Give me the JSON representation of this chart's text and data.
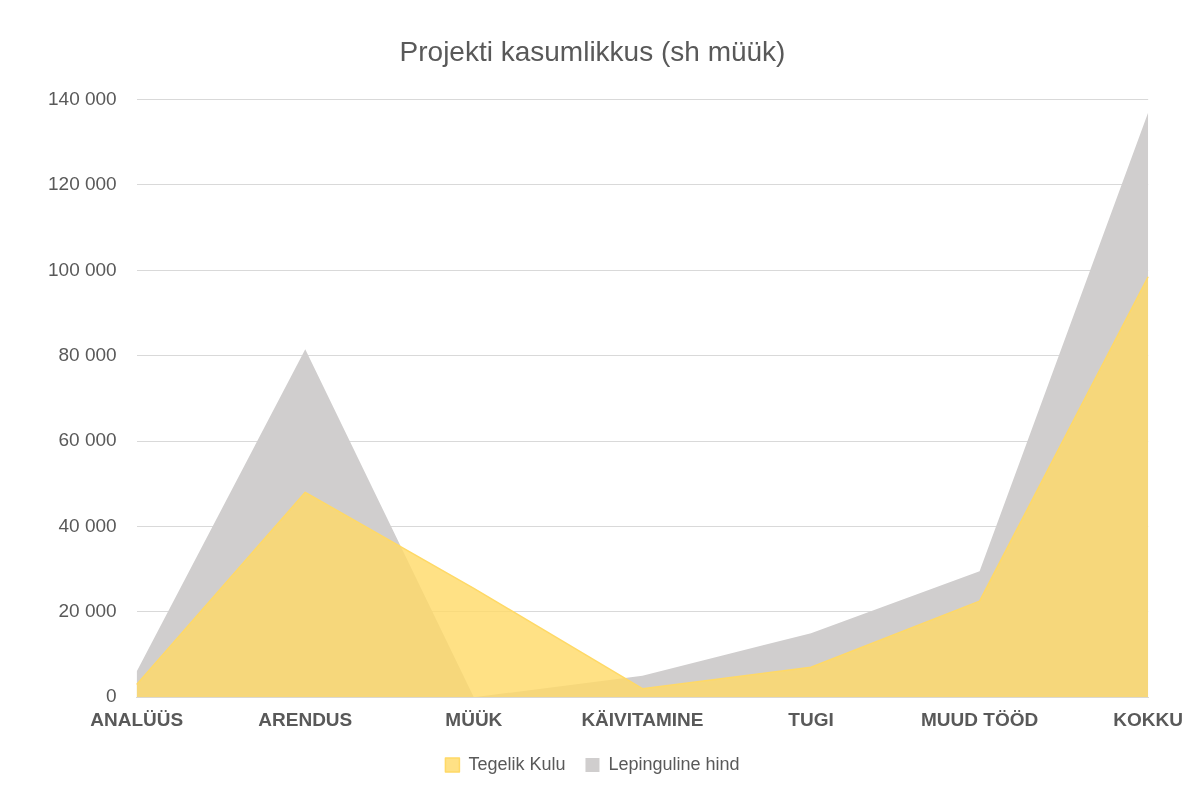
{
  "chart_data": {
    "type": "area",
    "title": "Projekti kasumlikkus (sh müük)",
    "categories": [
      "ANALÜÜS",
      "ARENDUS",
      "MÜÜK",
      "KÄIVITAMINE",
      "TUGI",
      "MUUD TÖÖD",
      "KOKKU"
    ],
    "series": [
      {
        "name": "Lepinguline hind",
        "color": "#d0cece",
        "values": [
          6000,
          81500,
          0,
          5000,
          15000,
          29500,
          137000
        ]
      },
      {
        "name": "Tegelik Kulu",
        "color": "#ffd966",
        "values": [
          3000,
          48000,
          25500,
          2000,
          7000,
          22500,
          98500
        ]
      }
    ],
    "ylim": [
      0,
      140000
    ],
    "yticks": [
      {
        "value": 0,
        "label": "0"
      },
      {
        "value": 20000,
        "label": "20 000"
      },
      {
        "value": 40000,
        "label": "40 000"
      },
      {
        "value": 60000,
        "label": "60 000"
      },
      {
        "value": 80000,
        "label": "80 000"
      },
      {
        "value": 100000,
        "label": "100 000"
      },
      {
        "value": 120000,
        "label": "120 000"
      },
      {
        "value": 140000,
        "label": "140 000"
      }
    ],
    "grid": "y",
    "legend": "bottom"
  }
}
